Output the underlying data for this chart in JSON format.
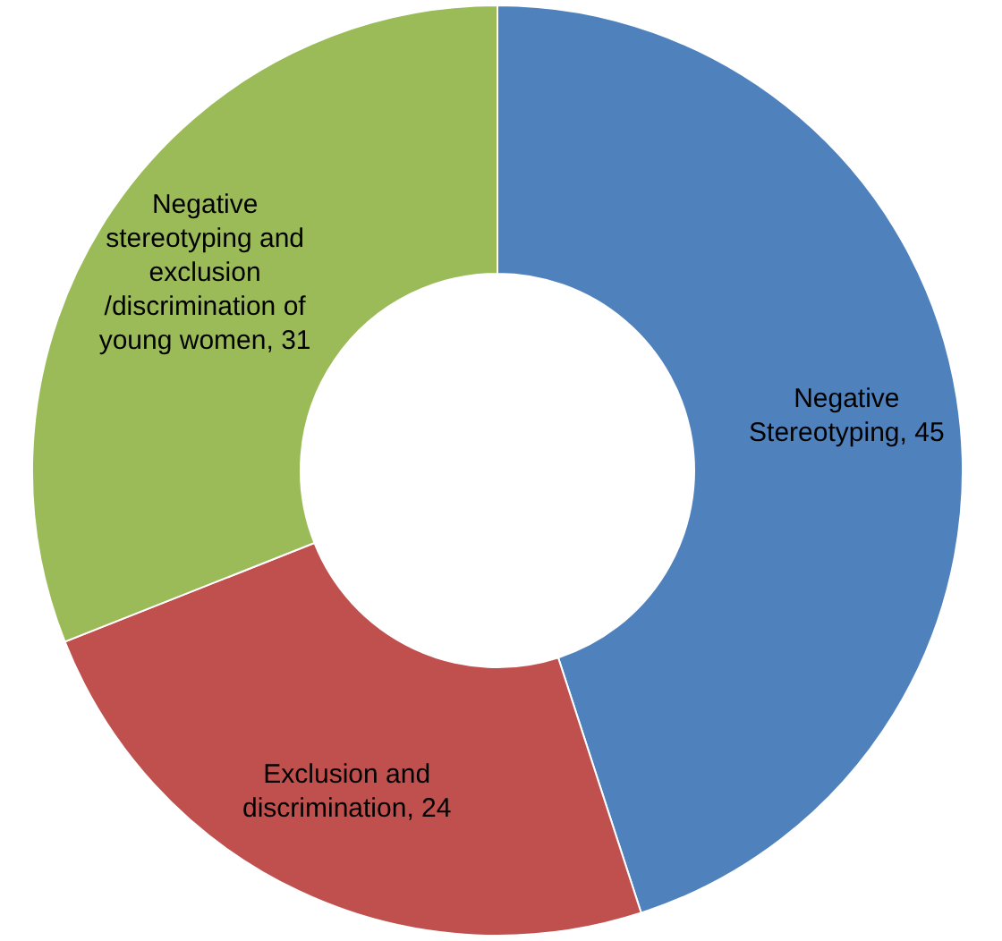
{
  "chart_data": {
    "type": "donut",
    "categories": [
      "Negative Stereotyping",
      "Exclusion and discrimination",
      "Negative stereotyping and exclusion /discrimination of young women"
    ],
    "values": [
      45,
      24,
      31
    ],
    "colors": [
      "#4f81bd",
      "#c0504d",
      "#9bbb59"
    ],
    "value_labels": [
      ", 45",
      ", 24",
      ", 31"
    ],
    "legend": false
  }
}
